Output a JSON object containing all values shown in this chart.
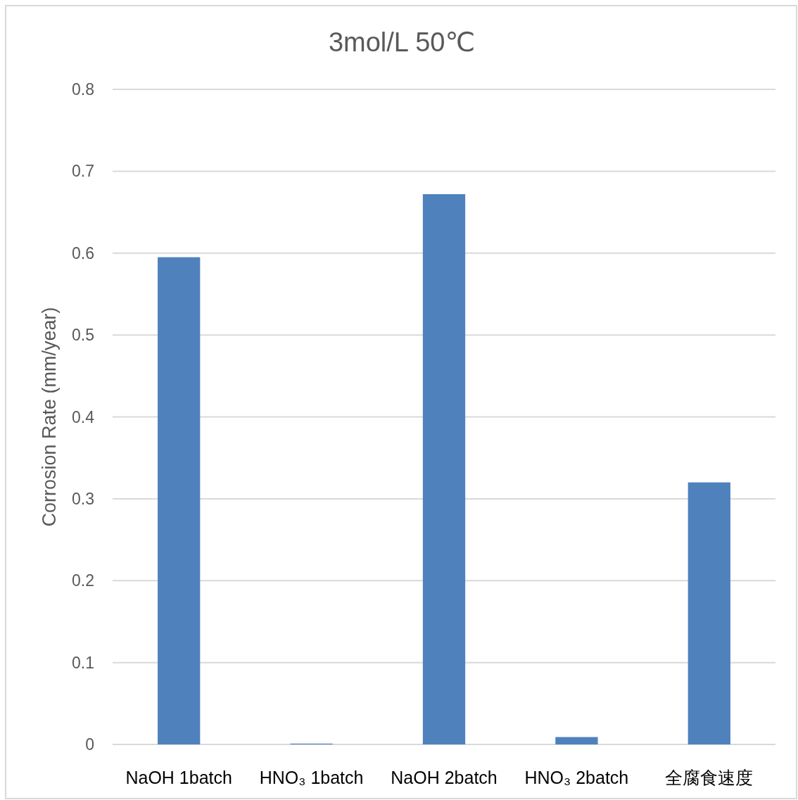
{
  "chart_data": {
    "type": "bar",
    "title": "3mol/L 50℃",
    "ylabel": "Corrosion Rate (mm/year)",
    "categories": [
      "NaOH 1batch",
      "HNO₃ 1batch",
      "NaOH 2batch",
      "HNO₃ 2batch",
      "全腐食速度"
    ],
    "values": [
      0.595,
      0.001,
      0.672,
      0.009,
      0.32
    ],
    "color": "#4f81bd",
    "ylim": [
      0,
      0.8
    ],
    "yticks": [
      0,
      0.1,
      0.2,
      0.3,
      0.4,
      0.5,
      0.6,
      0.7,
      0.8
    ],
    "grid": "y",
    "legend": false
  }
}
